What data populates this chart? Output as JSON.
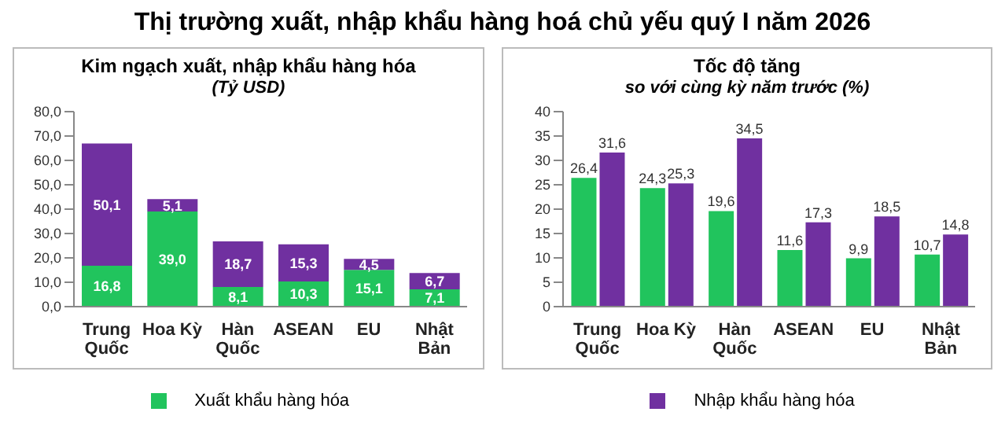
{
  "chart_data": [
    {
      "type": "bar",
      "title": "Kim ngạch xuất, nhập khẩu hàng hóa",
      "subtitle": "(Tỷ USD)",
      "annotations": [
        "Thị trường xuất, nhập khẩu hàng hoá chủ yếu quý I năm 2026"
      ],
      "categories": [
        "Trung Quốc",
        "Hoa Kỳ",
        "Hàn Quốc",
        "ASEAN",
        "EU",
        "Nhật Bản"
      ],
      "stacked": true,
      "legend": "bottom",
      "ylim": [
        0,
        80
      ],
      "yticks": [
        {
          "value": 0,
          "label": "0,0"
        },
        {
          "value": 10,
          "label": "10,0"
        },
        {
          "value": 20,
          "label": "20,0"
        },
        {
          "value": 30,
          "label": "30,0"
        },
        {
          "value": 40,
          "label": "40,0"
        },
        {
          "value": 50,
          "label": "50,0"
        },
        {
          "value": 60,
          "label": "60,0"
        },
        {
          "value": 70,
          "label": "70,0"
        },
        {
          "value": 80,
          "label": "80,0"
        }
      ],
      "series": [
        {
          "name": "Xuất khẩu hàng hóa",
          "color": "#21c45d",
          "values": [
            16.8,
            39.0,
            8.1,
            10.3,
            15.1,
            7.1
          ],
          "value_labels": [
            "16,8",
            "39,0",
            "8,1",
            "10,3",
            "15,1",
            "7,1"
          ]
        },
        {
          "name": "Nhập khẩu hàng hóa",
          "color": "#7030a0",
          "values": [
            50.1,
            5.1,
            18.7,
            15.3,
            4.5,
            6.7
          ],
          "value_labels": [
            "50,1",
            "5,1",
            "18,7",
            "15,3",
            "4,5",
            "6,7"
          ]
        }
      ]
    },
    {
      "type": "bar",
      "title": "Tốc độ tăng",
      "subtitle": "so với cùng kỳ năm trước (%)",
      "categories": [
        "Trung Quốc",
        "Hoa Kỳ",
        "Hàn Quốc",
        "ASEAN",
        "EU",
        "Nhật Bản"
      ],
      "ylim": [
        0,
        40
      ],
      "yticks": [
        0,
        5,
        10,
        15,
        20,
        25,
        30,
        35,
        40
      ],
      "series": [
        {
          "color": "#21c45d",
          "values": [
            26.4,
            24.3,
            19.6,
            11.6,
            9.9,
            10.7
          ],
          "value_labels": [
            "26,4",
            "24,3",
            "19,6",
            "11,6",
            "9,9",
            "10,7"
          ]
        },
        {
          "color": "#7030a0",
          "values": [
            31.6,
            25.3,
            34.5,
            17.3,
            18.5,
            14.8
          ],
          "value_labels": [
            "31,6",
            "25,3",
            "34,5",
            "17,3",
            "18,5",
            "14,8"
          ]
        }
      ]
    }
  ]
}
